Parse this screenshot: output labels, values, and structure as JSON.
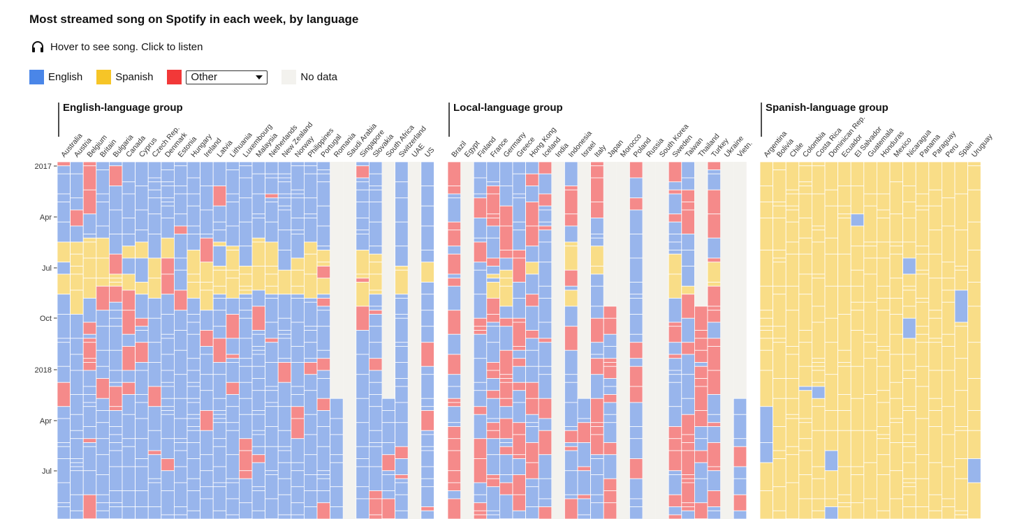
{
  "title": "Most streamed song on Spotify in each week, by language",
  "hint": "Hover to see song. Click to listen",
  "icons": {
    "hint": "headphones-icon",
    "dropdown": "chevron-down-icon"
  },
  "legend": {
    "english": {
      "label": "English",
      "color": "#4a86e8"
    },
    "spanish": {
      "label": "Spanish",
      "color": "#f6c527"
    },
    "other": {
      "label": "Other",
      "color": "#f23838"
    },
    "nodata": {
      "label": "No data",
      "color": "#f3f2ee"
    }
  },
  "chart_data": {
    "type": "heatmap",
    "title": "Most streamed song on Spotify in each week, by language",
    "x_categories": "countries grouped by language",
    "y_axis_ticks": [
      "2017",
      "Apr",
      "Jul",
      "Oct",
      "2018",
      "Apr",
      "Jul"
    ],
    "fill_colors": {
      "English": "#98b5ec",
      "Spanish": "#f9dd87",
      "Other": "#f58a8a",
      "No data": "#f3f2ee"
    },
    "groups": [
      {
        "name": "English-language group",
        "dominant": "English",
        "countries": [
          {
            "name": "Australia"
          },
          {
            "name": "Austria"
          },
          {
            "name": "Belgium"
          },
          {
            "name": "Britain"
          },
          {
            "name": "Bulgaria"
          },
          {
            "name": "Canada"
          },
          {
            "name": "Cyprus"
          },
          {
            "name": "Czech Rep."
          },
          {
            "name": "Denmark"
          },
          {
            "name": "Estonia"
          },
          {
            "name": "Hungary"
          },
          {
            "name": "Ireland"
          },
          {
            "name": "Latvia"
          },
          {
            "name": "Lithuania"
          },
          {
            "name": "Luxembourg"
          },
          {
            "name": "Malaysia"
          },
          {
            "name": "Netherlands"
          },
          {
            "name": "New Zealand"
          },
          {
            "name": "Norway"
          },
          {
            "name": "Philippines"
          },
          {
            "name": "Portugal"
          },
          {
            "name": "Romania",
            "nodata_until": "2018-Mar"
          },
          {
            "name": "Saudi Arabia",
            "nodata_until": "end"
          },
          {
            "name": "Singapore"
          },
          {
            "name": "Slovakia"
          },
          {
            "name": "South Africa",
            "nodata_until": "2018-Mar"
          },
          {
            "name": "Switzerland"
          },
          {
            "name": "UAE",
            "nodata_until": "end"
          },
          {
            "name": "US"
          }
        ]
      },
      {
        "name": "Local-language group",
        "dominant": "Other",
        "countries": [
          {
            "name": "Brazil"
          },
          {
            "name": "Egypt",
            "nodata_until": "end"
          },
          {
            "name": "Finland"
          },
          {
            "name": "France"
          },
          {
            "name": "Germany"
          },
          {
            "name": "Greece"
          },
          {
            "name": "Hong Kong"
          },
          {
            "name": "Iceland"
          },
          {
            "name": "India",
            "nodata_until": "end"
          },
          {
            "name": "Indonesia"
          },
          {
            "name": "Israel",
            "nodata_until": "2018-Mar"
          },
          {
            "name": "Italy"
          },
          {
            "name": "Japan",
            "nodata_until": "2017-Sep"
          },
          {
            "name": "Morocco",
            "nodata_until": "end"
          },
          {
            "name": "Poland"
          },
          {
            "name": "Russia",
            "nodata_until": "end"
          },
          {
            "name": "South Korea",
            "nodata_until": "end"
          },
          {
            "name": "Sweden"
          },
          {
            "name": "Taiwan"
          },
          {
            "name": "Thailand",
            "nodata_until": "2017-Sep"
          },
          {
            "name": "Turkey"
          },
          {
            "name": "Ukraine",
            "nodata_until": "end"
          },
          {
            "name": "Vietn.",
            "nodata_until": "2018-Mar"
          }
        ]
      },
      {
        "name": "Spanish-language group",
        "dominant": "Spanish",
        "countries": [
          {
            "name": "Argentina"
          },
          {
            "name": "Bolivia"
          },
          {
            "name": "Chile"
          },
          {
            "name": "Colombia"
          },
          {
            "name": "Costa Rica"
          },
          {
            "name": "Dominican Rep."
          },
          {
            "name": "Ecuador"
          },
          {
            "name": "El Salvador"
          },
          {
            "name": "Guatemala"
          },
          {
            "name": "Honduras"
          },
          {
            "name": "Mexico"
          },
          {
            "name": "Nicaragua"
          },
          {
            "name": "Panama"
          },
          {
            "name": "Paraguay"
          },
          {
            "name": "Peru"
          },
          {
            "name": "Spain"
          },
          {
            "name": "Uruguay"
          }
        ]
      }
    ]
  }
}
